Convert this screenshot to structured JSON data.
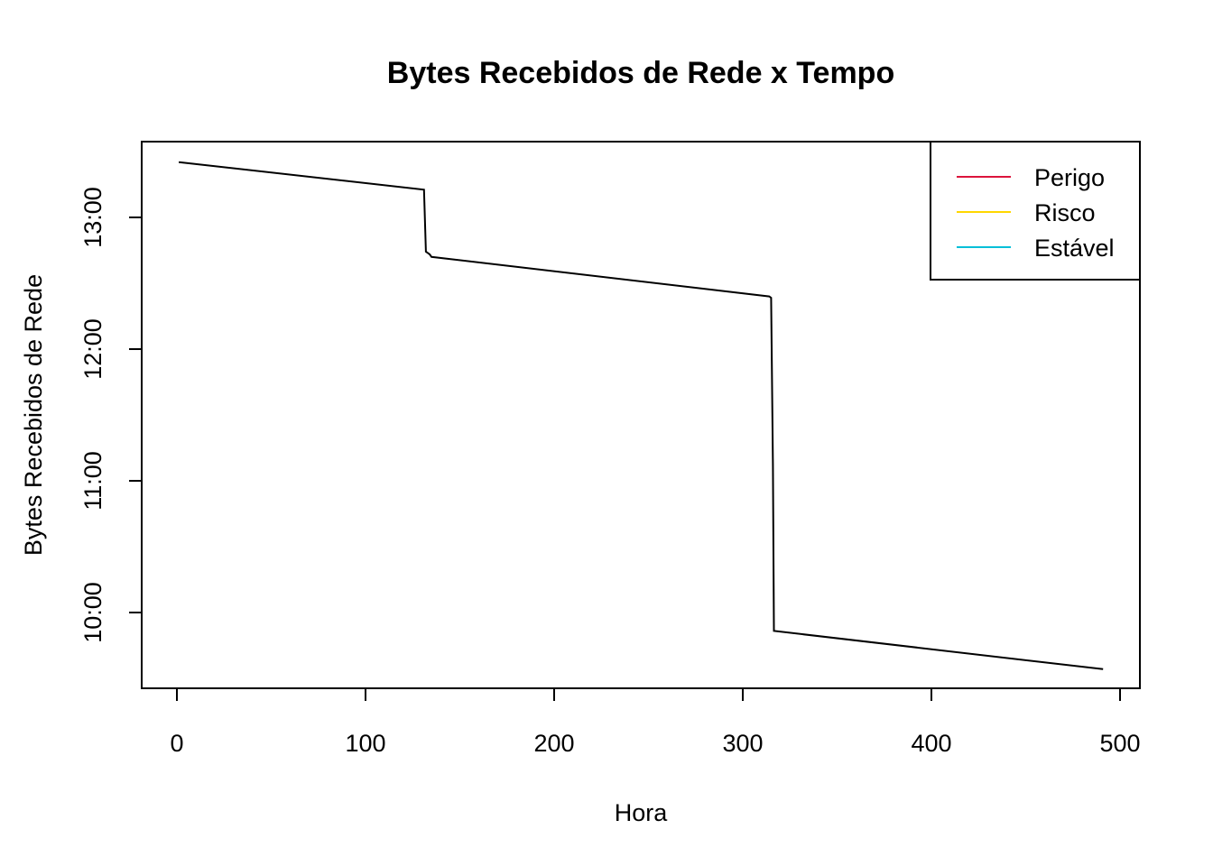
{
  "chart_data": {
    "type": "line",
    "title": "Bytes Recebidos de Rede x Tempo",
    "xlabel": "Hora",
    "ylabel": "Bytes Recebidos de Rede",
    "xlim": [
      -10,
      500
    ],
    "ylim": [
      9.58,
      13.58
    ],
    "x_ticks": [
      0,
      100,
      200,
      300,
      400,
      500
    ],
    "y_ticks": [
      {
        "value": 13,
        "label": "13:00"
      },
      {
        "value": 12,
        "label": "12:00"
      },
      {
        "value": 11,
        "label": "11:00"
      },
      {
        "value": 10,
        "label": "10:00"
      }
    ],
    "grid": false,
    "series": [
      {
        "color": "#000000",
        "x": [
          1,
          131,
          132,
          133,
          134,
          135,
          314,
          315,
          316,
          316.5,
          491
        ],
        "y": [
          13.42,
          13.21,
          12.74,
          12.73,
          12.72,
          12.7,
          12.4,
          12.39,
          11.12,
          9.86,
          9.57
        ]
      }
    ],
    "legend": {
      "position": "top-right",
      "entries": [
        {
          "name": "Perigo",
          "color": "#DC143C"
        },
        {
          "name": "Risco",
          "color": "#FFD700"
        },
        {
          "name": "Estável",
          "color": "#00BFD8"
        }
      ]
    }
  }
}
